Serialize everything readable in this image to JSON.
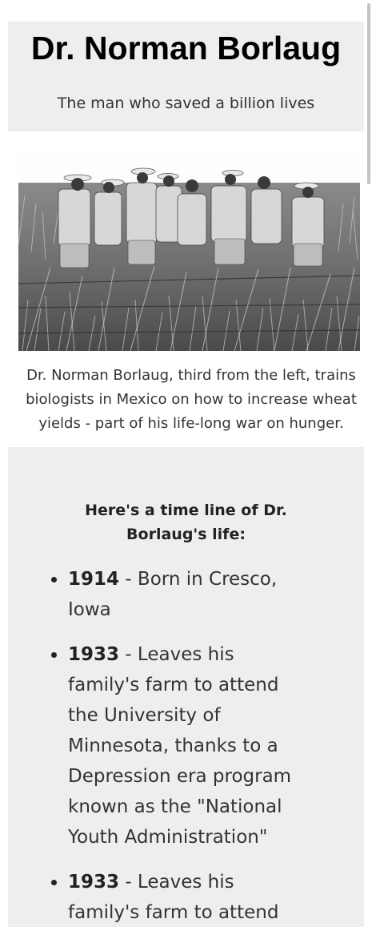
{
  "header": {
    "title": "Dr. Norman Borlaug",
    "subtitle": "The man who saved a billion lives"
  },
  "image": {
    "alt": "Dr. Norman Borlaug, third from the left, trains biologists in Mexico on how to increase wheat yields - part of his life-long war on hunger.",
    "caption": "Dr. Norman Borlaug, third from the left, trains biologists in Mexico on how to increase wheat yields - part of his life-long war on hunger."
  },
  "tribute": {
    "heading": "Here's a time line of Dr. Borlaug's life:",
    "items": [
      {
        "year": "1914",
        "text": " - Born in Cresco, Iowa"
      },
      {
        "year": "1933",
        "text": " - Leaves his family's farm to attend the University of Minnesota, thanks to a Depression era program known as the \"National Youth Administration\""
      },
      {
        "year": "1933",
        "text": " - Leaves his family's farm to attend"
      }
    ]
  },
  "colors": {
    "panel_bg": "#eeeeee",
    "page_bg": "#ffffff",
    "title_text": "#000000",
    "body_text": "#333333"
  }
}
